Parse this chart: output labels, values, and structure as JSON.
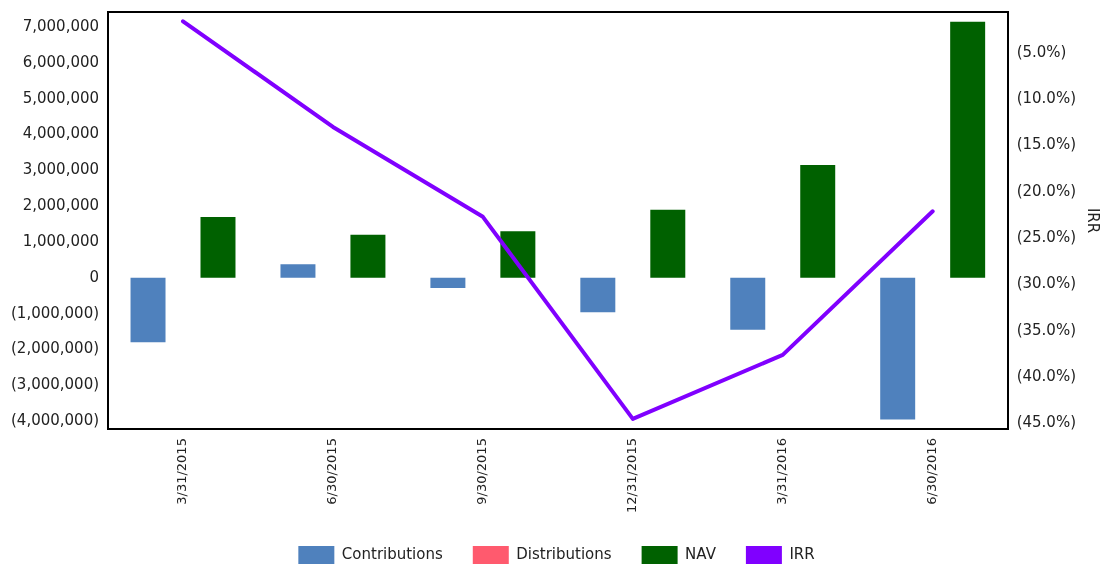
{
  "chart_data": {
    "type": "bar",
    "categories": [
      "3/31/2015",
      "6/30/2015",
      "9/30/2015",
      "12/31/2015",
      "3/31/2016",
      "6/30/2016"
    ],
    "series": [
      {
        "name": "Contributions",
        "color": "#4f81bd",
        "values": [
          -1800000,
          380000,
          -280000,
          -960000,
          -1450000,
          -3950000
        ]
      },
      {
        "name": "Distributions",
        "color": "#ff5a6e",
        "values": [
          0,
          0,
          0,
          0,
          0,
          0
        ]
      },
      {
        "name": "NAV",
        "color": "#006100",
        "values": [
          1700000,
          1200000,
          1300000,
          1900000,
          3150000,
          7150000
        ]
      },
      {
        "name": "IRR",
        "type": "line",
        "axis": "y2",
        "color": "#8000ff",
        "values": [
          -1.6,
          -13.0,
          -22.7,
          -44.5,
          -37.6,
          -22.1
        ]
      }
    ],
    "y2label": "IRR",
    "ylim": [
      -4220000,
      7420000
    ],
    "yticks": [
      {
        "value": -4000000,
        "label": "(4,000,000)"
      },
      {
        "value": -3000000,
        "label": "(3,000,000)"
      },
      {
        "value": -2000000,
        "label": "(2,000,000)"
      },
      {
        "value": -1000000,
        "label": "(1,000,000)"
      },
      0,
      {
        "value": 1000000,
        "label": "1,000,000"
      },
      {
        "value": 2000000,
        "label": "2,000,000"
      },
      {
        "value": 3000000,
        "label": "3,000,000"
      },
      {
        "value": 4000000,
        "label": "4,000,000"
      },
      {
        "value": 5000000,
        "label": "5,000,000"
      },
      {
        "value": 6000000,
        "label": "6,000,000"
      },
      {
        "value": 7000000,
        "label": "7,000,000"
      }
    ],
    "y2lim": [
      -45.6,
      -0.6
    ],
    "y2ticks": [
      {
        "value": -45,
        "label": "(45.0%)"
      },
      {
        "value": -40,
        "label": "(40.0%)"
      },
      {
        "value": -35,
        "label": "(35.0%)"
      },
      {
        "value": -30,
        "label": "(30.0%)"
      },
      {
        "value": -25,
        "label": "(25.0%)"
      },
      {
        "value": -20,
        "label": "(20.0%)"
      },
      {
        "value": -15,
        "label": "(15.0%)"
      },
      {
        "value": -10,
        "label": "(10.0%)"
      },
      {
        "value": -5,
        "label": "(5.0%)"
      }
    ],
    "grid": false,
    "legend": "bottom",
    "marker": "none"
  }
}
